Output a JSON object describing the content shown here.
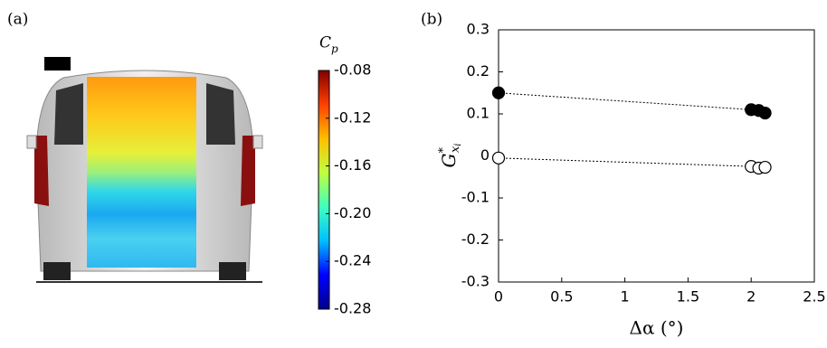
{
  "panel_a": {
    "label": "(a)",
    "colorbar": {
      "label": "C",
      "label_sub": "p",
      "clim": [
        -0.28,
        -0.08
      ],
      "ticks": [
        -0.08,
        -0.12,
        -0.16,
        {
          "value": -0.2,
          "label": "-0.20"
        },
        -0.24,
        -0.28
      ],
      "colors": [
        "#00008f",
        "#0000ff",
        "#00bfff",
        "#40ffbf",
        "#bfff40",
        "#ffbf00",
        "#ff4000",
        "#800000"
      ]
    }
  },
  "chart_data": {
    "type": "scatter",
    "panel_label": "(b)",
    "xlabel": "Δα (°)",
    "ylabel": {
      "base": "G",
      "sup": "*",
      "sub": "x",
      "subsub": "i"
    },
    "xlim": [
      0,
      2.5
    ],
    "ylim": [
      -0.3,
      0.3
    ],
    "xticks": [
      0,
      0.5,
      1,
      1.5,
      2,
      2.5
    ],
    "yticks": [
      -0.3,
      -0.2,
      -0.1,
      0,
      0.1,
      0.2,
      0.3
    ],
    "line_style": "dotted",
    "series": [
      {
        "color": "#000000",
        "marker_fill": "#000000",
        "x": [
          0,
          2.0,
          2.06,
          2.11
        ],
        "values": [
          0.15,
          0.11,
          0.108,
          0.102
        ]
      },
      {
        "color": "#000000",
        "marker_fill": "#ffffff",
        "x": [
          0,
          2.0,
          2.06,
          2.11
        ],
        "values": [
          -0.005,
          -0.025,
          -0.029,
          -0.027
        ]
      }
    ]
  }
}
